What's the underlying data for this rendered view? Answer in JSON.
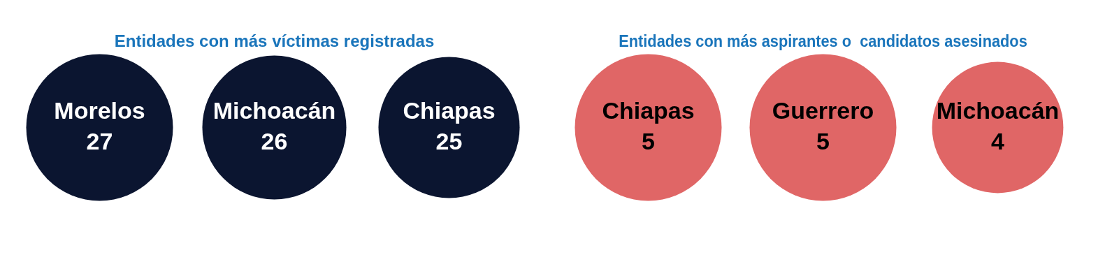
{
  "chart_data": [
    {
      "type": "other",
      "title": "Entidades con más víctimas registradas",
      "categories": [
        "Morelos",
        "Michoacán",
        "Chiapas"
      ],
      "values": [
        27,
        26,
        25
      ],
      "color": "#0b1530",
      "data_labels": true
    },
    {
      "type": "other",
      "title": "Entidades con más aspirantes o  candidatos asesinados",
      "categories": [
        "Chiapas",
        "Guerrero",
        "Michoacán"
      ],
      "values": [
        5,
        5,
        4
      ],
      "color": "#e06666",
      "data_labels": true
    }
  ]
}
